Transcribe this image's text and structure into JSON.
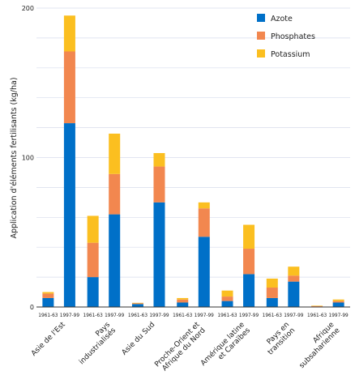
{
  "chart_data": {
    "type": "bar",
    "stacked": true,
    "ylabel": "Application d'éléments fertilisants (kg/ha)",
    "ylim": [
      0,
      200
    ],
    "yticks": [
      0,
      100,
      200
    ],
    "grid": true,
    "legend_position": "top-right",
    "groups": [
      "Asie de l'Est",
      "Pays industrialisés",
      "Asie du Sud",
      "Proche-Orient et Afrique du Nord",
      "Amérique latine et Caraïbes",
      "Pays en transition",
      "Afrique subsaharienne"
    ],
    "periods": [
      "1961-63",
      "1997-99"
    ],
    "series": [
      {
        "name": "Azote",
        "color": "#0070c8",
        "values": [
          [
            6,
            123
          ],
          [
            20,
            62
          ],
          [
            2,
            70
          ],
          [
            3,
            47
          ],
          [
            4,
            22
          ],
          [
            6,
            17
          ],
          [
            0.3,
            3
          ]
        ]
      },
      {
        "name": "Phosphates",
        "color": "#f2874f",
        "values": [
          [
            3,
            48
          ],
          [
            23,
            27
          ],
          [
            0.5,
            24
          ],
          [
            2,
            19
          ],
          [
            3,
            17
          ],
          [
            7,
            4
          ],
          [
            0.3,
            1
          ]
        ]
      },
      {
        "name": "Potassium",
        "color": "#fbbf20",
        "values": [
          [
            1,
            24
          ],
          [
            18,
            27
          ],
          [
            0.3,
            9
          ],
          [
            1,
            4
          ],
          [
            4,
            16
          ],
          [
            6,
            6
          ],
          [
            0.3,
            1
          ]
        ]
      }
    ]
  }
}
